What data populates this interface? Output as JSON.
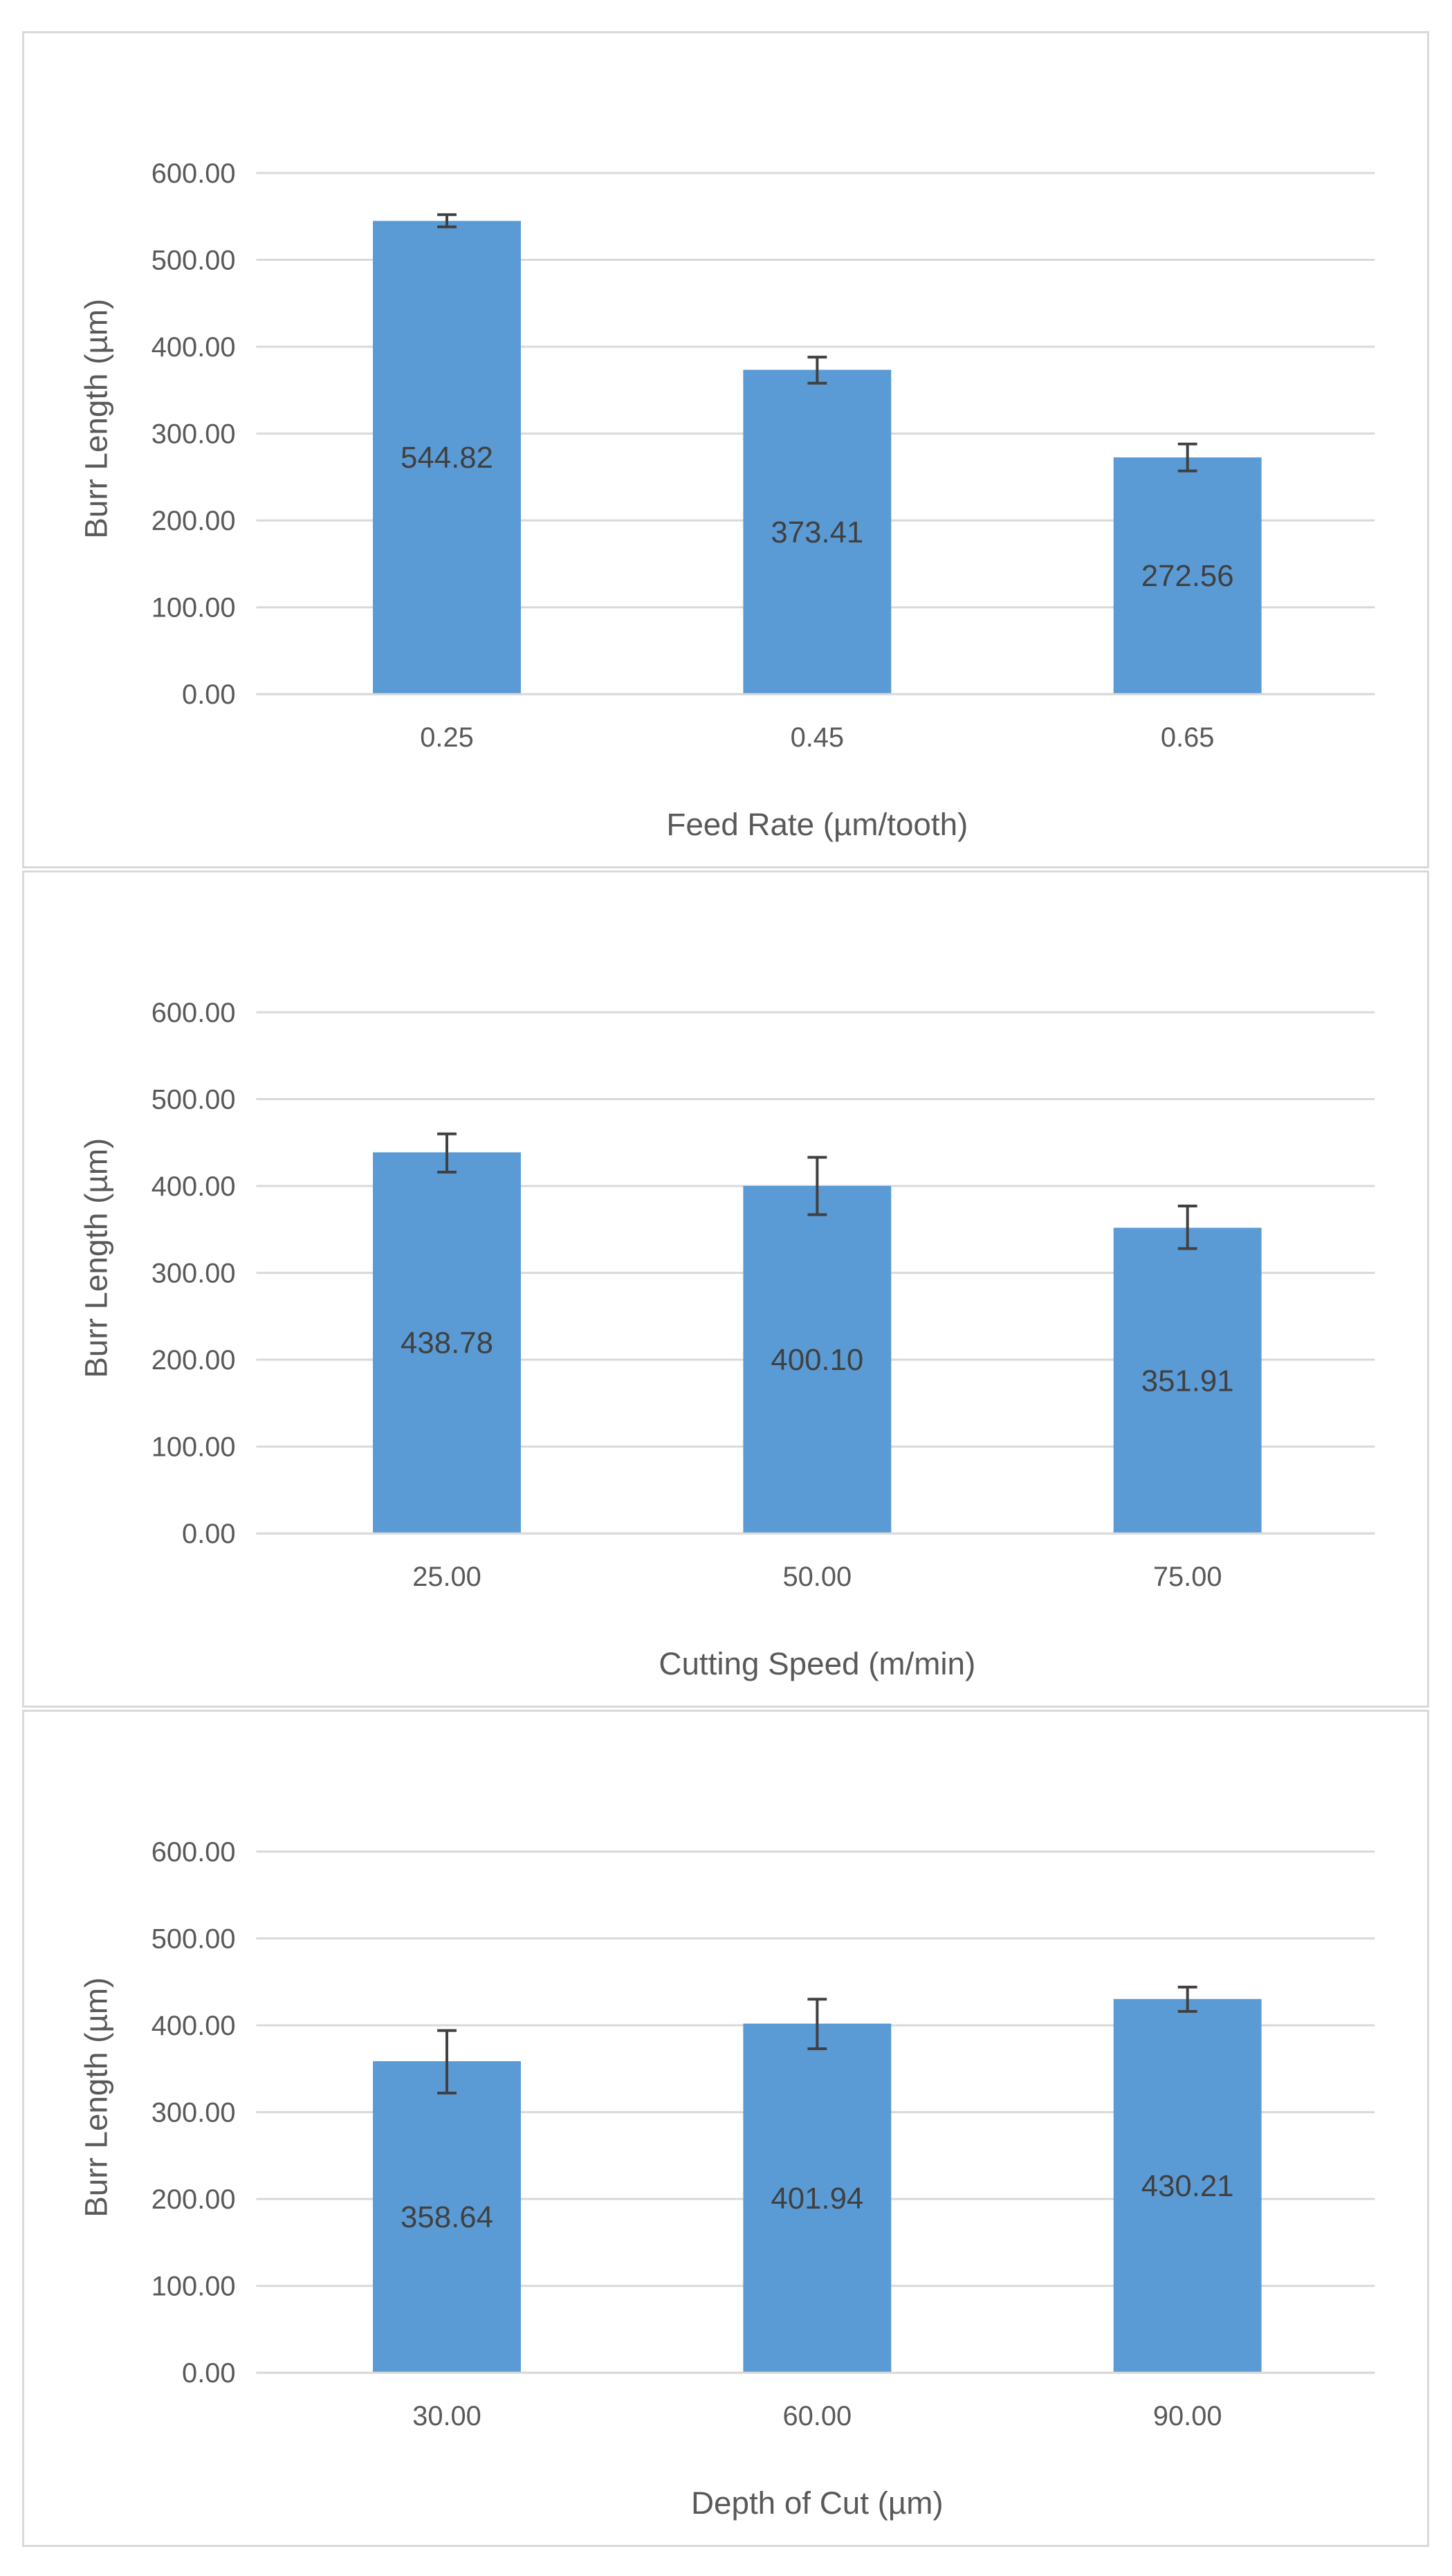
{
  "chart_data": [
    {
      "type": "bar",
      "title": "",
      "xlabel": "Feed Rate (µm/tooth)",
      "ylabel": "Burr Length (µm)",
      "categories": [
        "0.25",
        "0.45",
        "0.65"
      ],
      "values": [
        544.82,
        373.41,
        272.56
      ],
      "value_labels": [
        "544.82",
        "373.41",
        "272.56"
      ],
      "error_bars": [
        [
          538,
          552
        ],
        [
          358,
          388
        ],
        [
          257,
          288
        ]
      ],
      "ylim": [
        0,
        600
      ],
      "yticks": [
        "0.00",
        "100.00",
        "200.00",
        "300.00",
        "400.00",
        "500.00",
        "600.00"
      ],
      "grid": true,
      "bar_color": "#5b9bd5"
    },
    {
      "type": "bar",
      "title": "",
      "xlabel": "Cutting Speed (m/min)",
      "ylabel": "Burr Length (µm)",
      "categories": [
        "25.00",
        "50.00",
        "75.00"
      ],
      "values": [
        438.78,
        400.1,
        351.91
      ],
      "value_labels": [
        "438.78",
        "400.10",
        "351.91"
      ],
      "error_bars": [
        [
          416,
          460
        ],
        [
          367,
          433
        ],
        [
          328,
          377
        ]
      ],
      "ylim": [
        0,
        600
      ],
      "yticks": [
        "0.00",
        "100.00",
        "200.00",
        "300.00",
        "400.00",
        "500.00",
        "600.00"
      ],
      "grid": true,
      "bar_color": "#5b9bd5"
    },
    {
      "type": "bar",
      "title": "",
      "xlabel": "Depth of Cut (µm)",
      "ylabel": "Burr Length (µm)",
      "categories": [
        "30.00",
        "60.00",
        "90.00"
      ],
      "values": [
        358.64,
        401.94,
        430.21
      ],
      "value_labels": [
        "358.64",
        "401.94",
        "430.21"
      ],
      "error_bars": [
        [
          322,
          394
        ],
        [
          373,
          430
        ],
        [
          416,
          444
        ]
      ],
      "ylim": [
        0,
        600
      ],
      "yticks": [
        "0.00",
        "100.00",
        "200.00",
        "300.00",
        "400.00",
        "500.00",
        "600.00"
      ],
      "grid": true,
      "bar_color": "#5b9bd5"
    }
  ]
}
